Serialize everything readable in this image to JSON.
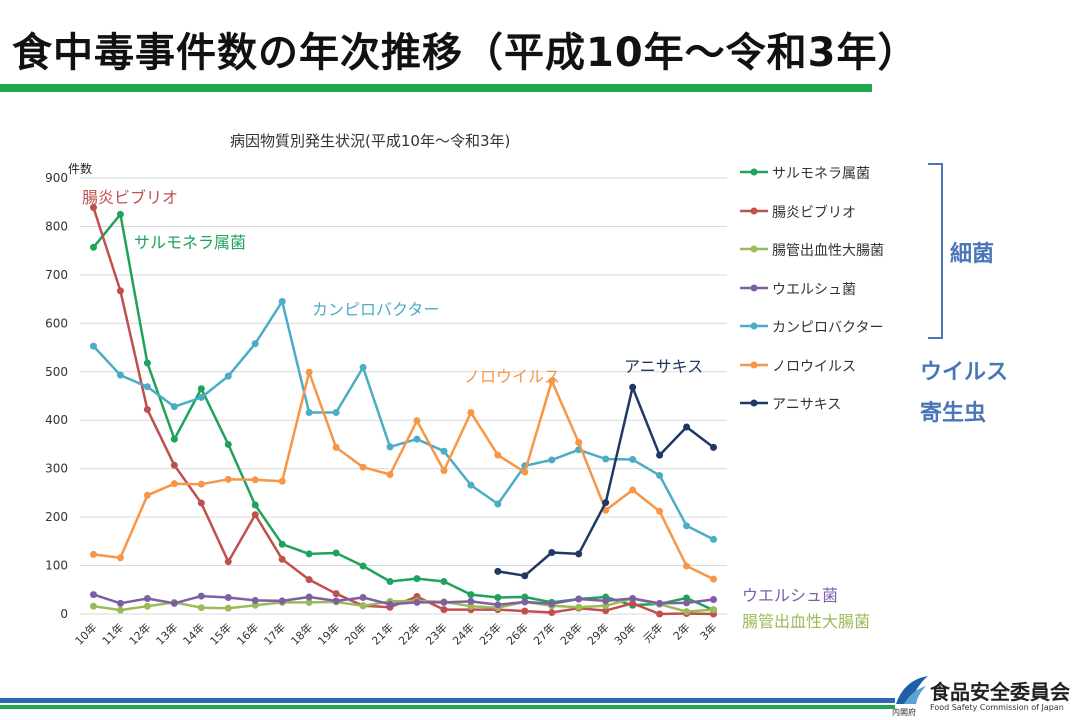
{
  "page_title": "食中毒事件数の年次推移（平成10年～令和3年）",
  "colors": {
    "title_rule": "#1FA84B",
    "accent_blue": "#4A76B8",
    "bottom_blue": "#2D69B3",
    "bottom_green": "#1FA84B"
  },
  "legend_group_labels": {
    "bacteria": "細菌",
    "virus": "ウイルス",
    "parasite": "寄生虫"
  },
  "footer": {
    "org_name": "食品安全委員会",
    "org_name_en": "Food Safety Commission of Japan",
    "cabinet": "内閣府"
  },
  "chart_data": {
    "type": "line",
    "title": "病因物質別発生状況(平成10年～令和3年)",
    "ylabel": "件数",
    "ylim": [
      0,
      900
    ],
    "yticks": [
      0,
      100,
      200,
      300,
      400,
      500,
      600,
      700,
      800,
      900
    ],
    "grid": "horizontal",
    "legend_position": "right",
    "categories": [
      "10年",
      "11年",
      "12年",
      "13年",
      "14年",
      "15年",
      "16年",
      "17年",
      "18年",
      "19年",
      "20年",
      "21年",
      "22年",
      "23年",
      "24年",
      "25年",
      "26年",
      "27年",
      "28年",
      "29年",
      "30年",
      "元年",
      "2年",
      "3年"
    ],
    "series": [
      {
        "name": "サルモネラ属菌",
        "color": "#1FA35A",
        "inline_label": "サルモネラ属菌",
        "values": [
          757,
          825,
          518,
          361,
          465,
          350,
          225,
          144,
          124,
          126,
          99,
          67,
          73,
          67,
          40,
          34,
          35,
          24,
          31,
          35,
          18,
          21,
          33,
          8
        ]
      },
      {
        "name": "腸炎ビブリオ",
        "color": "#C0504D",
        "inline_label": "腸炎ビブリオ",
        "values": [
          839,
          667,
          422,
          307,
          229,
          108,
          205,
          113,
          71,
          42,
          17,
          14,
          36,
          9,
          9,
          9,
          6,
          3,
          12,
          7,
          22,
          0,
          1,
          0
        ]
      },
      {
        "name": "腸管出血性大腸菌",
        "color": "#9BBB59",
        "inline_label": "腸管出血性大腸菌",
        "values": [
          16,
          8,
          16,
          24,
          13,
          12,
          18,
          24,
          24,
          25,
          17,
          26,
          27,
          25,
          16,
          13,
          25,
          17,
          14,
          17,
          32,
          20,
          5,
          9
        ]
      },
      {
        "name": "ウエルシュ菌",
        "color": "#7E5FA4",
        "inline_label": "ウエルシュ菌",
        "values": [
          40,
          22,
          32,
          22,
          37,
          34,
          28,
          27,
          35,
          27,
          34,
          20,
          24,
          24,
          26,
          19,
          25,
          21,
          31,
          27,
          32,
          22,
          23,
          30
        ]
      },
      {
        "name": "カンピロバクター",
        "color": "#4BACC6",
        "inline_label": "カンピロバクター",
        "values": [
          553,
          493,
          469,
          428,
          447,
          491,
          558,
          645,
          416,
          416,
          509,
          345,
          361,
          336,
          266,
          227,
          306,
          318,
          339,
          320,
          319,
          286,
          182,
          154
        ]
      },
      {
        "name": "ノロウイルス",
        "color": "#F79646",
        "inline_label": "ノロウイルス",
        "values": [
          123,
          116,
          245,
          269,
          268,
          278,
          277,
          274,
          499,
          344,
          303,
          288,
          399,
          296,
          416,
          328,
          293,
          481,
          354,
          214,
          256,
          212,
          99,
          72
        ]
      },
      {
        "name": "アニサキス",
        "color": "#1F3864",
        "inline_label": "アニサキス",
        "values": [
          null,
          null,
          null,
          null,
          null,
          null,
          null,
          null,
          null,
          null,
          null,
          null,
          null,
          null,
          null,
          88,
          79,
          127,
          124,
          230,
          468,
          328,
          386,
          344
        ]
      }
    ]
  }
}
